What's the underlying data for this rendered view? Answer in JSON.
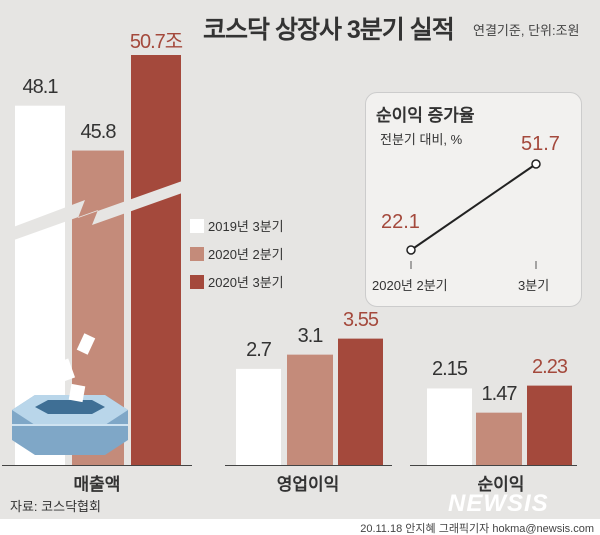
{
  "title": "코스닥 상장사 3분기 실적",
  "unit_note": "연결기준, 단위:조원",
  "source": "자료: 코스닥협회",
  "credit": "20.11.18 안지혜 그래픽기자 hokma@newsis.com",
  "watermark": "NEWSIS",
  "colors": {
    "2019년 3분기": "#ffffff",
    "2020년 2분기": "#c48b7a",
    "2020년 3분기": "#a4493c",
    "background": "#e6e5e3"
  },
  "chart_data": [
    {
      "type": "bar",
      "title": "코스닥 상장사 3분기 실적",
      "categories": [
        "매출액",
        "영업이익",
        "순이익"
      ],
      "series": [
        {
          "name": "2019년 3분기",
          "values": [
            48.1,
            2.7,
            2.15
          ]
        },
        {
          "name": "2020년 2분기",
          "values": [
            45.8,
            3.1,
            1.47
          ]
        },
        {
          "name": "2020년 3분기",
          "values": [
            50.7,
            3.55,
            2.23
          ]
        }
      ],
      "value_labels": [
        [
          "48.1",
          "45.8",
          "50.7조"
        ],
        [
          "2.7",
          "3.1",
          "3.55"
        ],
        [
          "2.15",
          "1.47",
          "2.23"
        ]
      ],
      "axis_break": "매출액",
      "legend": "center"
    },
    {
      "type": "line",
      "title": "순이익 증가율",
      "subtitle": "전분기 대비, %",
      "x": [
        "2020년 2분기",
        "3분기"
      ],
      "values": [
        22.1,
        51.7
      ],
      "value_labels": [
        "22.1",
        "51.7"
      ]
    }
  ]
}
